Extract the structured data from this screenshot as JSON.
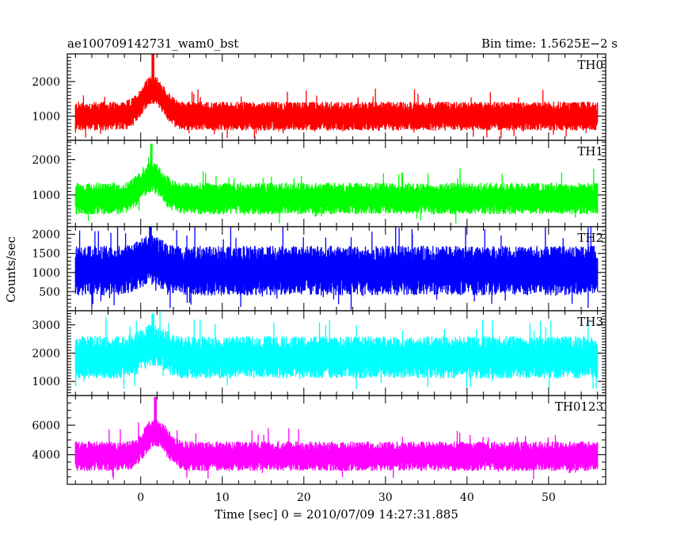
{
  "header": {
    "title": "ae100709142731_wam0_bst",
    "bin_time": "Bin time: 1.5625E−2 s"
  },
  "chart_data": {
    "type": "line",
    "xlabel": "Time [sec] 0 = 2010/07/09 14:27:31.885",
    "ylabel": "Counts/sec",
    "xlim": [
      -9,
      57
    ],
    "x_ticks": [
      0,
      10,
      20,
      30,
      40,
      50
    ],
    "x_range_data": [
      -8,
      56
    ],
    "bin_time_s": 0.015625,
    "panels": [
      {
        "name": "TH0",
        "color": "#ff0000",
        "ylim": [
          300,
          2800
        ],
        "yticks": [
          1000,
          2000
        ],
        "baseline_mean": 1000,
        "noise_half_width": 420,
        "burst_peak_time": 1.5,
        "burst_peak_value": 2800
      },
      {
        "name": "TH1",
        "color": "#00ff00",
        "ylim": [
          100,
          2550
        ],
        "yticks": [
          1000,
          2000
        ],
        "baseline_mean": 900,
        "noise_half_width": 450,
        "burst_peak_time": 1.3,
        "burst_peak_value": 2450
      },
      {
        "name": "TH2",
        "color": "#0000ff",
        "ylim": [
          0,
          2200
        ],
        "yticks": [
          500,
          1000,
          1500,
          2000
        ],
        "baseline_mean": 1050,
        "noise_half_width": 650,
        "burst_peak_time": 1.2,
        "burst_peak_value": 2200
      },
      {
        "name": "TH3",
        "color": "#00ffff",
        "ylim": [
          500,
          3500
        ],
        "yticks": [
          1000,
          2000,
          3000
        ],
        "baseline_mean": 1850,
        "noise_half_width": 750,
        "burst_peak_time": 1.5,
        "burst_peak_value": 3400
      },
      {
        "name": "TH0123",
        "color": "#ff00ff",
        "ylim": [
          2000,
          8000
        ],
        "yticks": [
          4000,
          6000
        ],
        "baseline_mean": 3900,
        "noise_half_width": 1000,
        "burst_peak_time": 1.8,
        "burst_peak_value": 7900
      }
    ]
  }
}
